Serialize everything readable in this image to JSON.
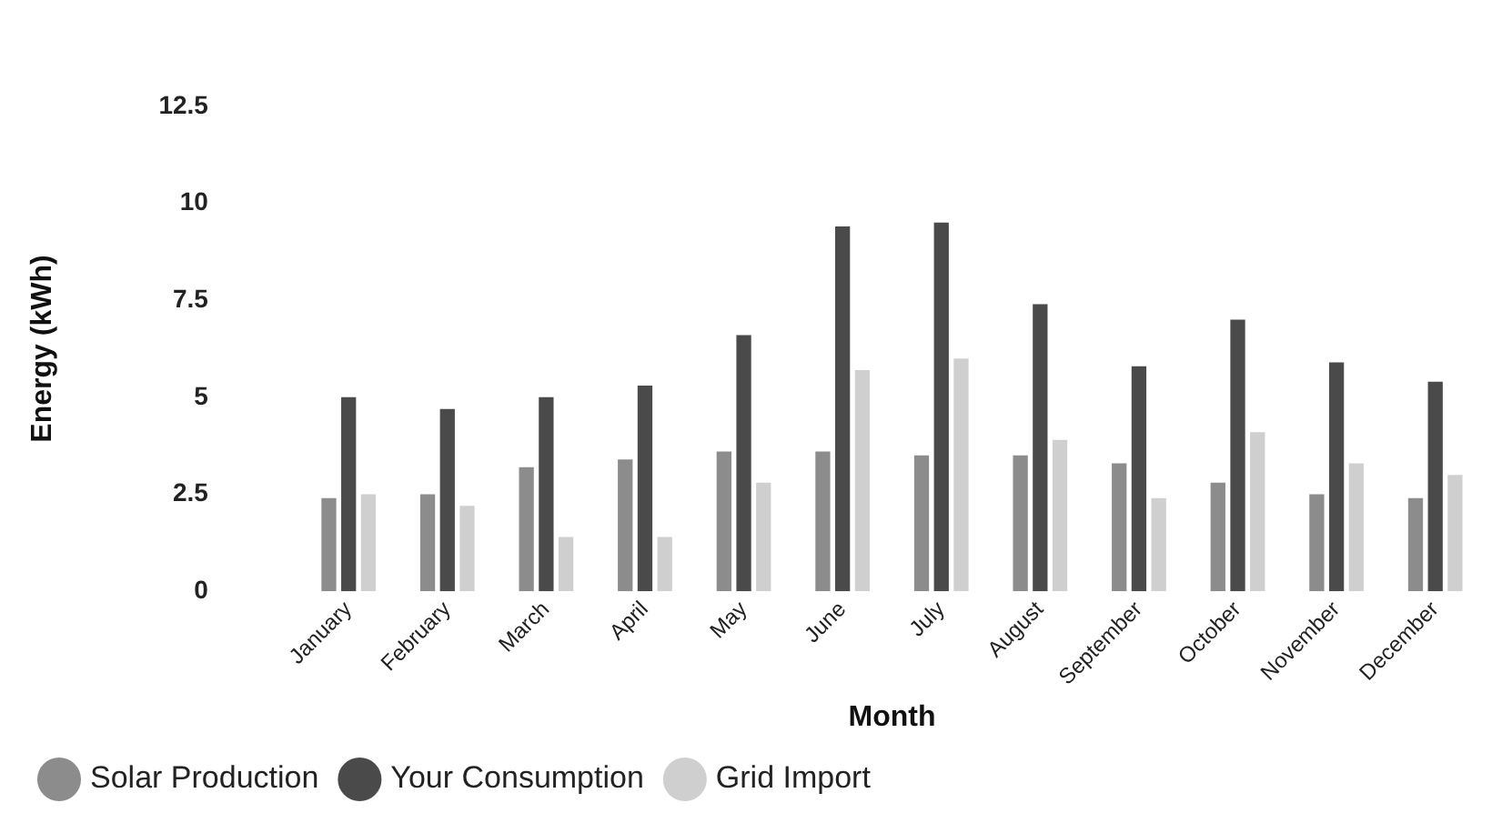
{
  "chart_data": {
    "type": "bar",
    "xlabel": "Month",
    "ylabel": "Energy (kWh)",
    "categories": [
      "January",
      "February",
      "March",
      "April",
      "May",
      "June",
      "July",
      "August",
      "September",
      "October",
      "November",
      "December"
    ],
    "series": [
      {
        "name": "Solar Production",
        "color": "#8c8c8c",
        "values": [
          2.4,
          2.5,
          3.2,
          3.4,
          3.6,
          3.6,
          3.5,
          3.5,
          3.3,
          2.8,
          2.5,
          2.4
        ]
      },
      {
        "name": "Your Consumption",
        "color": "#4a4a4a",
        "values": [
          5.0,
          4.7,
          5.0,
          5.3,
          6.6,
          9.4,
          9.5,
          7.4,
          5.8,
          7.0,
          5.9,
          5.4
        ]
      },
      {
        "name": "Grid Import",
        "color": "#cfcfcf",
        "values": [
          2.5,
          2.2,
          1.4,
          1.4,
          2.8,
          5.7,
          6.0,
          3.9,
          2.4,
          4.1,
          3.3,
          3.0
        ]
      }
    ],
    "ylim": [
      0,
      12.5
    ],
    "yticks": [
      0,
      2.5,
      5,
      7.5,
      10,
      12.5
    ],
    "grid": false,
    "legend": "bottom left"
  }
}
